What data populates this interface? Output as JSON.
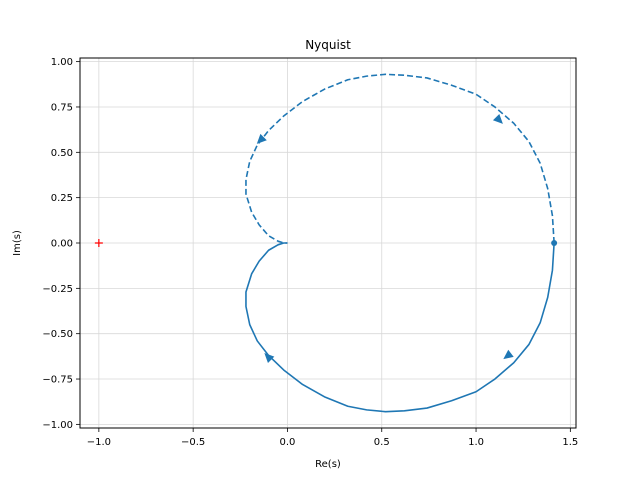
{
  "chart_data": {
    "type": "line",
    "title": "Nyquist",
    "xlabel": "Re(s)",
    "ylabel": "Im(s)",
    "xlim": [
      -1.1,
      1.53
    ],
    "ylim": [
      -1.02,
      1.02
    ],
    "grid": true,
    "x_ticks": [
      -1.0,
      -0.5,
      0.0,
      0.5,
      1.0,
      1.5
    ],
    "x_tick_labels": [
      "−1.0",
      "−0.5",
      "0.0",
      "0.5",
      "1.0",
      "1.5"
    ],
    "y_ticks": [
      1.0,
      0.75,
      0.5,
      0.25,
      0.0,
      -0.25,
      -0.5,
      -0.75,
      -1.0
    ],
    "y_tick_labels": [
      "1.00",
      "0.75",
      "0.50",
      "0.25",
      "0.00",
      "−0.25",
      "−0.50",
      "−0.75",
      "−1.00"
    ],
    "line_color": "#1f77b4",
    "critical_point_color": "#ff0000",
    "critical_point": [
      -1.0,
      0.0
    ],
    "start_point": [
      1.414,
      0.0
    ],
    "curve_positive": [
      [
        1.414,
        0.0
      ],
      [
        1.405,
        -0.15
      ],
      [
        1.38,
        -0.3
      ],
      [
        1.34,
        -0.44
      ],
      [
        1.28,
        -0.56
      ],
      [
        1.2,
        -0.66
      ],
      [
        1.1,
        -0.75
      ],
      [
        1.0,
        -0.82
      ],
      [
        0.87,
        -0.87
      ],
      [
        0.74,
        -0.91
      ],
      [
        0.62,
        -0.925
      ],
      [
        0.52,
        -0.93
      ],
      [
        0.42,
        -0.92
      ],
      [
        0.32,
        -0.9
      ],
      [
        0.2,
        -0.85
      ],
      [
        0.08,
        -0.78
      ],
      [
        -0.02,
        -0.7
      ],
      [
        -0.1,
        -0.62
      ],
      [
        -0.16,
        -0.54
      ],
      [
        -0.2,
        -0.45
      ],
      [
        -0.22,
        -0.35
      ],
      [
        -0.22,
        -0.27
      ],
      [
        -0.19,
        -0.17
      ],
      [
        -0.15,
        -0.1
      ],
      [
        -0.1,
        -0.04
      ],
      [
        -0.05,
        -0.01
      ],
      [
        -0.02,
        0.0
      ],
      [
        0.0,
        0.0
      ]
    ],
    "arrow_positions": [
      {
        "x": 1.17,
        "y": -0.62,
        "dir": [
          -0.74,
          -0.56
        ]
      },
      {
        "x": -0.1,
        "y": -0.63,
        "dir": [
          -0.6,
          0.6
        ]
      },
      {
        "x": 1.12,
        "y": 0.68,
        "dir": [
          0.6,
          -0.6
        ]
      },
      {
        "x": -0.14,
        "y": 0.57,
        "dir": [
          -0.7,
          -0.7
        ]
      }
    ]
  }
}
